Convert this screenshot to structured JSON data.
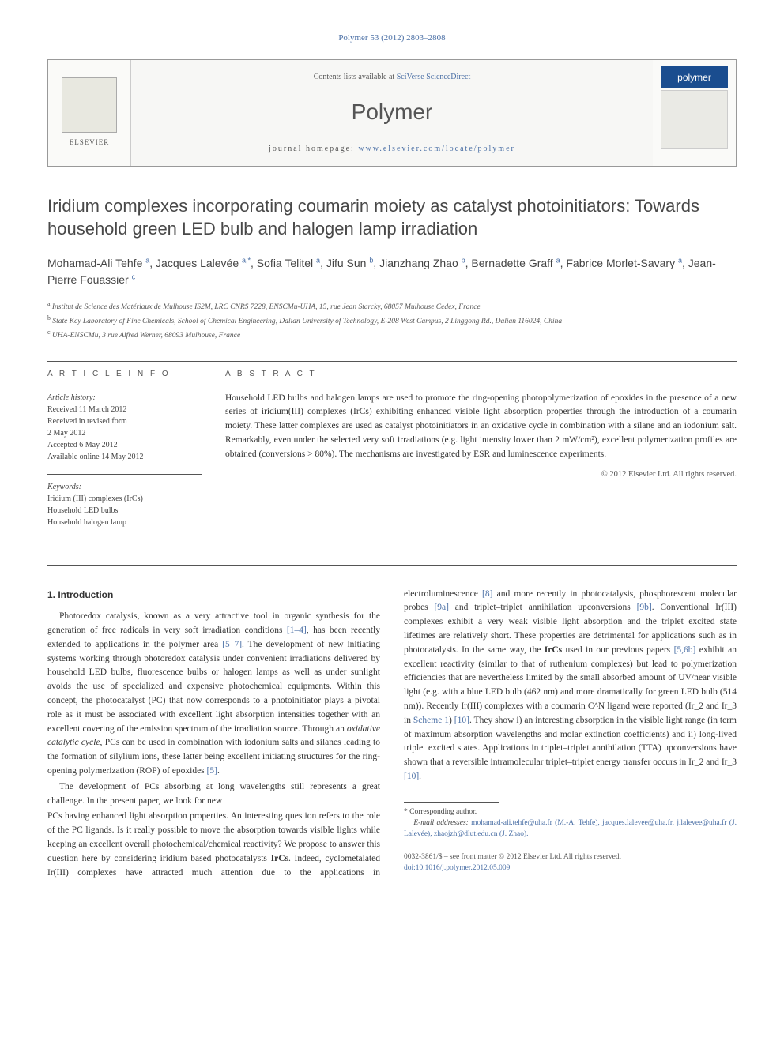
{
  "citation": "Polymer 53 (2012) 2803–2808",
  "header": {
    "contents_prefix": "Contents lists available at ",
    "contents_link": "SciVerse ScienceDirect",
    "journal": "Polymer",
    "homepage_label": "journal homepage: ",
    "homepage": "www.elsevier.com/locate/polymer",
    "publisher": "ELSEVIER",
    "cover_label": "polymer"
  },
  "title": "Iridium complexes incorporating coumarin moiety as catalyst photoinitiators: Towards household green LED bulb and halogen lamp irradiation",
  "authors_html": "Mohamad-Ali Tehfe <sup>a</sup>, Jacques Lalevée <sup>a,*</sup>, Sofia Telitel <sup>a</sup>, Jifu Sun <sup>b</sup>, Jianzhang Zhao <sup>b</sup>, Bernadette Graff <sup>a</sup>, Fabrice Morlet-Savary <sup>a</sup>, Jean-Pierre Fouassier <sup>c</sup>",
  "affiliations": {
    "a": "Institut de Science des Matériaux de Mulhouse IS2M, LRC CNRS 7228, ENSCMu-UHA, 15, rue Jean Starcky, 68057 Mulhouse Cedex, France",
    "b": "State Key Laboratory of Fine Chemicals, School of Chemical Engineering, Dalian University of Technology, E-208 West Campus, 2 Linggong Rd., Dalian 116024, China",
    "c": "UHA-ENSCMu, 3 rue Alfred Werner, 68093 Mulhouse, France"
  },
  "article_info": {
    "heading": "A R T I C L E  I N F O",
    "history_label": "Article history:",
    "history": [
      "Received 11 March 2012",
      "Received in revised form",
      "2 May 2012",
      "Accepted 6 May 2012",
      "Available online 14 May 2012"
    ],
    "keywords_label": "Keywords:",
    "keywords": [
      "Iridium (III) complexes (IrCs)",
      "Household LED bulbs",
      "Household halogen lamp"
    ]
  },
  "abstract": {
    "heading": "A B S T R A C T",
    "text": "Household LED bulbs and halogen lamps are used to promote the ring-opening photopolymerization of epoxides in the presence of a new series of iridium(III) complexes (IrCs) exhibiting enhanced visible light absorption properties through the introduction of a coumarin moiety. These latter complexes are used as catalyst photoinitiators in an oxidative cycle in combination with a silane and an iodonium salt. Remarkably, even under the selected very soft irradiations (e.g. light intensity lower than 2 mW/cm²), excellent polymerization profiles are obtained (conversions > 80%). The mechanisms are investigated by ESR and luminescence experiments.",
    "copyright": "© 2012 Elsevier Ltd. All rights reserved."
  },
  "introduction": {
    "heading": "1. Introduction",
    "para1": "Photoredox catalysis, known as a very attractive tool in organic synthesis for the generation of free radicals in very soft irradiation conditions [1–4], has been recently extended to applications in the polymer area [5–7]. The development of new initiating systems working through photoredox catalysis under convenient irradiations delivered by household LED bulbs, fluorescence bulbs or halogen lamps as well as under sunlight avoids the use of specialized and expensive photochemical equipments. Within this concept, the photocatalyst (PC) that now corresponds to a photoinitiator plays a pivotal role as it must be associated with excellent light absorption intensities together with an excellent covering of the emission spectrum of the irradiation source. Through an oxidative catalytic cycle, PCs can be used in combination with iodonium salts and silanes leading to the formation of silylium ions, these latter being excellent initiating structures for the ring-opening polymerization (ROP) of epoxides [5].",
    "para2": "The development of PCs absorbing at long wavelengths still represents a great challenge. In the present paper, we look for new",
    "para3": "PCs having enhanced light absorption properties. An interesting question refers to the role of the PC ligands. Is it really possible to move the absorption towards visible lights while keeping an excellent overall photochemical/chemical reactivity? We propose to answer this question here by considering iridium based photocatalysts IrCs. Indeed, cyclometalated Ir(III) complexes have attracted much attention due to the applications in electroluminescence [8] and more recently in photocatalysis, phosphorescent molecular probes [9a] and triplet–triplet annihilation upconversions [9b]. Conventional Ir(III) complexes exhibit a very weak visible light absorption and the triplet excited state lifetimes are relatively short. These properties are detrimental for applications such as in photocatalysis. In the same way, the IrCs used in our previous papers [5,6b] exhibit an excellent reactivity (similar to that of ruthenium complexes) but lead to polymerization efficiencies that are nevertheless limited by the small absorbed amount of UV/near visible light (e.g. with a blue LED bulb (462 nm) and more dramatically for green LED bulb (514 nm)). Recently Ir(III) complexes with a coumarin C^N ligand were reported (Ir_2 and Ir_3 in Scheme 1) [10]. They show i) an interesting absorption in the visible light range (in term of maximum absorption wavelengths and molar extinction coefficients) and ii) long-lived triplet excited states. Applications in triplet–triplet annihilation (TTA) upconversions have shown that a reversible intramolecular triplet–triplet energy transfer occurs in Ir_2 and Ir_3 [10]."
  },
  "footnote": {
    "corr": "* Corresponding author.",
    "emails_label": "E-mail addresses:",
    "emails": " mohamad-ali.tehfe@uha.fr (M.-A. Tehfe), jacques.lalevee@uha.fr, j.lalevee@uha.fr (J. Lalevée), zhaojzh@dlut.edu.cn (J. Zhao)."
  },
  "doi": {
    "line1": "0032-3861/$ – see front matter © 2012 Elsevier Ltd. All rights reserved.",
    "line2": "doi:10.1016/j.polymer.2012.05.009"
  },
  "colors": {
    "link": "#4a6fa5",
    "text": "#333333",
    "muted": "#555555",
    "cover_badge": "#1a4d8f"
  }
}
